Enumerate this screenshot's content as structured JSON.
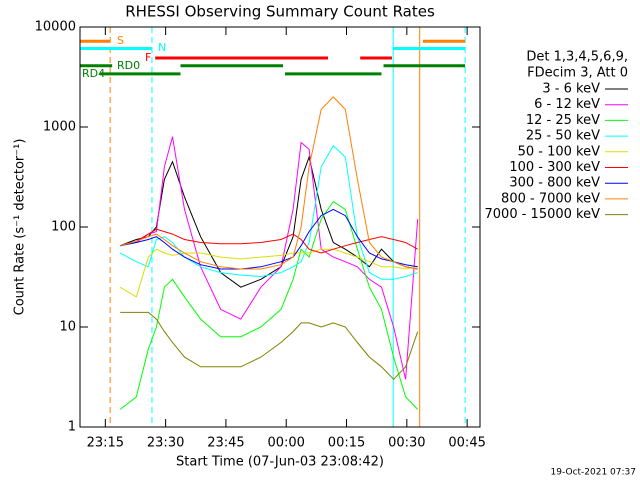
{
  "chart_data": {
    "type": "line",
    "title": "RHESSI Observing Summary Count Rates",
    "xlabel": "Start Time (07-Jun-03 23:08:42)",
    "ylabel": "Count Rate (s⁻¹ detector⁻¹)",
    "footnote": "19-Oct-2021 07:37",
    "legend_header": [
      "Det 1,3,4,5,6,9,",
      "FDecim 3, Att 0"
    ],
    "log_y": true,
    "xlim": [
      0,
      99.5
    ],
    "ylim": [
      1,
      10000
    ],
    "xticks": [
      {
        "value": 6.3,
        "label": "23:15"
      },
      {
        "value": 21.3,
        "label": "23:30"
      },
      {
        "value": 36.3,
        "label": "23:45"
      },
      {
        "value": 51.3,
        "label": "00:00"
      },
      {
        "value": 66.3,
        "label": "00:15"
      },
      {
        "value": 81.3,
        "label": "00:30"
      },
      {
        "value": 96.3,
        "label": "00:45"
      }
    ],
    "yticks": [
      1,
      10,
      100,
      1000,
      10000
    ],
    "x": [
      10,
      14,
      17,
      19,
      21,
      23,
      26,
      30,
      35,
      40,
      45,
      50,
      53,
      55,
      57,
      60,
      63,
      66,
      69,
      72,
      75,
      78,
      81,
      84
    ],
    "series": [
      {
        "name": "3 - 6 keV",
        "color": "#000000",
        "values": [
          65,
          75,
          80,
          100,
          300,
          450,
          200,
          80,
          35,
          25,
          30,
          40,
          80,
          300,
          500,
          150,
          70,
          60,
          50,
          40,
          60,
          45,
          40,
          38
        ]
      },
      {
        "name": "6 - 12 keV",
        "color": "#ff00ff",
        "values": [
          65,
          70,
          85,
          90,
          400,
          800,
          150,
          40,
          15,
          12,
          25,
          40,
          150,
          700,
          600,
          60,
          50,
          45,
          40,
          30,
          25,
          10,
          3,
          120
        ]
      },
      {
        "name": "12 - 25 keV",
        "color": "#00ff00",
        "values": [
          1.5,
          2,
          6,
          10,
          25,
          30,
          20,
          12,
          8,
          8,
          10,
          15,
          30,
          60,
          50,
          120,
          180,
          150,
          60,
          25,
          15,
          5,
          2,
          1.5
        ]
      },
      {
        "name": "25 - 50 keV",
        "color": "#00ffff",
        "values": [
          55,
          45,
          40,
          75,
          80,
          70,
          50,
          40,
          35,
          33,
          32,
          35,
          40,
          45,
          70,
          400,
          650,
          500,
          80,
          35,
          30,
          30,
          32,
          35
        ]
      },
      {
        "name": "50 - 100 keV",
        "color": "#dddd00",
        "values": [
          25,
          20,
          50,
          60,
          55,
          52,
          55,
          55,
          50,
          48,
          50,
          52,
          55,
          55,
          55,
          60,
          60,
          55,
          50,
          45,
          40,
          40,
          38,
          40
        ]
      },
      {
        "name": "100 - 300 keV",
        "color": "#ff0000",
        "values": [
          65,
          72,
          85,
          95,
          90,
          85,
          75,
          70,
          68,
          68,
          70,
          75,
          85,
          75,
          60,
          55,
          60,
          65,
          70,
          75,
          80,
          75,
          70,
          60
        ]
      },
      {
        "name": "300 - 800 keV",
        "color": "#0000ff",
        "values": [
          65,
          70,
          75,
          80,
          70,
          60,
          50,
          42,
          38,
          38,
          40,
          45,
          50,
          65,
          90,
          130,
          150,
          130,
          80,
          55,
          48,
          45,
          42,
          40
        ]
      },
      {
        "name": "800 - 7000 keV",
        "color": "#ff8000",
        "values": [
          65,
          72,
          80,
          85,
          75,
          65,
          55,
          45,
          40,
          38,
          38,
          42,
          50,
          100,
          400,
          1500,
          2000,
          1500,
          300,
          70,
          50,
          45,
          40,
          38
        ]
      },
      {
        "name": "7000 - 15000 keV",
        "color": "#808000",
        "values": [
          14,
          14,
          14,
          12,
          9,
          7,
          5,
          4,
          4,
          4,
          5,
          7,
          9,
          11,
          11,
          10,
          11,
          10,
          7,
          5,
          4,
          3,
          4,
          9
        ]
      }
    ],
    "flags": [
      {
        "label": "S",
        "color": "#ff8000",
        "level": 7200,
        "segments": [
          [
            0,
            7.5
          ],
          [
            85.3,
            95.8
          ]
        ]
      },
      {
        "label": "N",
        "color": "#00ffff",
        "level": 6100,
        "segments": [
          [
            0,
            17.9
          ],
          [
            77.9,
            95.8
          ]
        ]
      },
      {
        "label": "F",
        "color": "#ff0000",
        "level": 4900,
        "segments": [
          [
            18.7,
            61.7
          ],
          [
            69.7,
            77.6
          ]
        ]
      },
      {
        "label": "RD0",
        "color": "#008000",
        "level": 4100,
        "segments": [
          [
            0,
            8
          ],
          [
            25,
            50.5
          ],
          [
            75.5,
            95.8
          ]
        ]
      },
      {
        "label": "RD4",
        "color": "#008000",
        "level": 3400,
        "segments": [
          [
            5,
            25
          ],
          [
            51,
            75
          ]
        ]
      }
    ],
    "vlines": [
      {
        "x": 7.5,
        "color": "#ff8000",
        "dashed": true
      },
      {
        "x": 17.9,
        "color": "#00ffff",
        "dashed": true
      },
      {
        "x": 77.9,
        "color": "#00ffff",
        "dashed": false
      },
      {
        "x": 84.5,
        "color": "#ff8000",
        "dashed": false
      },
      {
        "x": 95.8,
        "color": "#00ffff",
        "dashed": true
      }
    ]
  }
}
